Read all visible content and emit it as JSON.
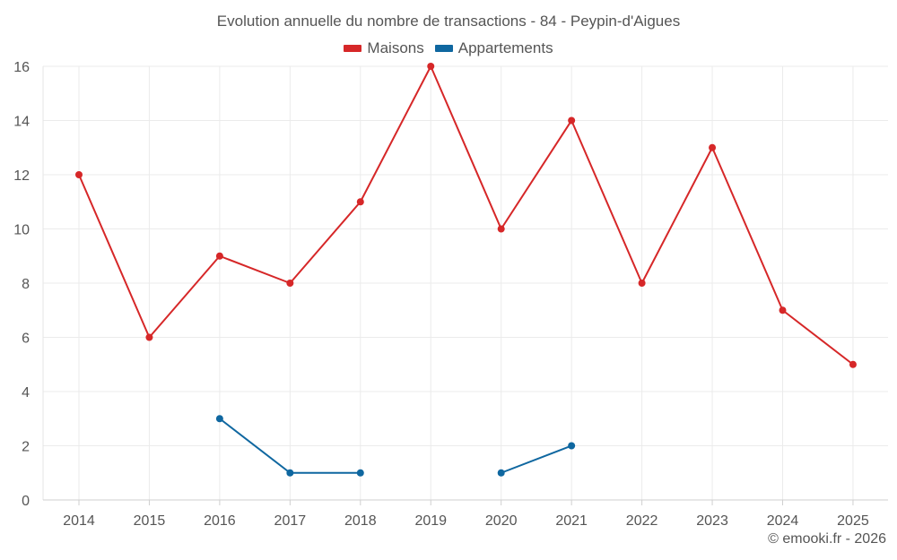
{
  "chart_data": {
    "type": "line",
    "title": "Evolution annuelle du nombre de transactions - 84 - Peypin-d'Aigues",
    "categories": [
      "2014",
      "2015",
      "2016",
      "2017",
      "2018",
      "2019",
      "2020",
      "2021",
      "2022",
      "2023",
      "2024",
      "2025"
    ],
    "ylim": [
      0,
      16
    ],
    "yticks": [
      0,
      2,
      4,
      6,
      8,
      10,
      12,
      14,
      16
    ],
    "grid": true,
    "legend_position": "top-center",
    "series": [
      {
        "name": "Maisons",
        "color": "#d62728",
        "values": [
          12,
          6,
          9,
          8,
          11,
          16,
          10,
          14,
          8,
          13,
          7,
          5
        ]
      },
      {
        "name": "Appartements",
        "color": "#0f67a0",
        "values": [
          null,
          null,
          3,
          1,
          1,
          null,
          1,
          2,
          null,
          null,
          null,
          null
        ]
      }
    ]
  },
  "credit": "© emooki.fr - 2026"
}
